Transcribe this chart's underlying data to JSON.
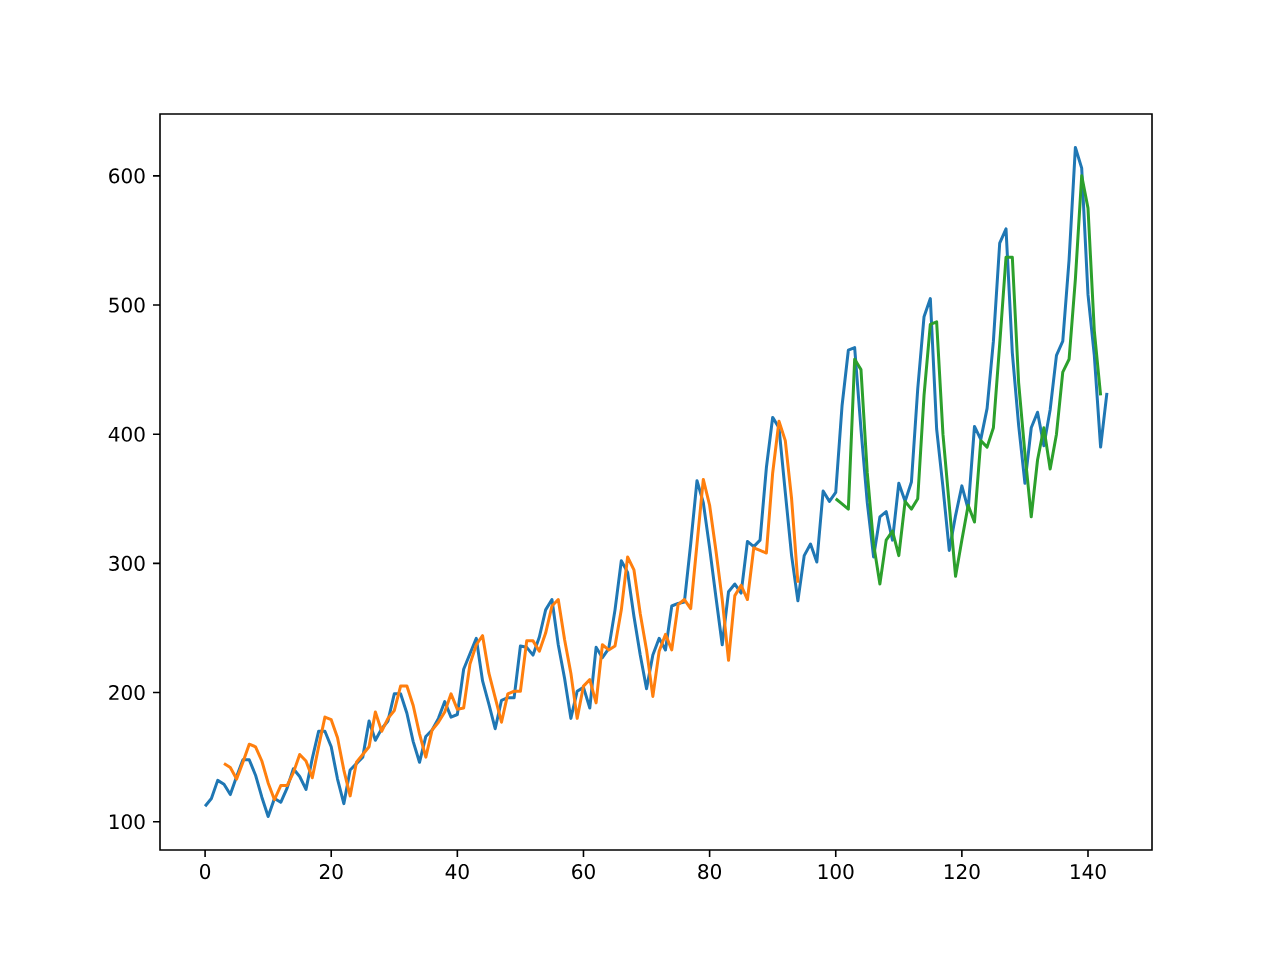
{
  "chart_data": {
    "type": "line",
    "xlim": [
      -7.15,
      150.15
    ],
    "ylim": [
      78.1,
      647.9
    ],
    "xticks": [
      0,
      20,
      40,
      60,
      80,
      100,
      120,
      140
    ],
    "yticks": [
      100,
      200,
      300,
      400,
      500,
      600
    ],
    "grid": false,
    "marker": "none",
    "line_style": "solid",
    "series": [
      {
        "color": "#1f77b4",
        "x": [
          0,
          1,
          2,
          3,
          4,
          5,
          6,
          7,
          8,
          9,
          10,
          11,
          12,
          13,
          14,
          15,
          16,
          17,
          18,
          19,
          20,
          21,
          22,
          23,
          24,
          25,
          26,
          27,
          28,
          29,
          30,
          31,
          32,
          33,
          34,
          35,
          36,
          37,
          38,
          39,
          40,
          41,
          42,
          43,
          44,
          45,
          46,
          47,
          48,
          49,
          50,
          51,
          52,
          53,
          54,
          55,
          56,
          57,
          58,
          59,
          60,
          61,
          62,
          63,
          64,
          65,
          66,
          67,
          68,
          69,
          70,
          71,
          72,
          73,
          74,
          75,
          76,
          77,
          78,
          79,
          80,
          81,
          82,
          83,
          84,
          85,
          86,
          87,
          88,
          89,
          90,
          91,
          92,
          93,
          94,
          95,
          96,
          97,
          98,
          99,
          100,
          101,
          102,
          103,
          104,
          105,
          106,
          107,
          108,
          109,
          110,
          111,
          112,
          113,
          114,
          115,
          116,
          117,
          118,
          119,
          120,
          121,
          122,
          123,
          124,
          125,
          126,
          127,
          128,
          129,
          130,
          131,
          132,
          133,
          134,
          135,
          136,
          137,
          138,
          139,
          140,
          141,
          142,
          143
        ],
        "values": [
          112,
          118,
          132,
          129,
          121,
          135,
          148,
          148,
          136,
          119,
          104,
          118,
          115,
          126,
          141,
          135,
          125,
          149,
          170,
          170,
          158,
          133,
          114,
          140,
          145,
          150,
          178,
          163,
          172,
          178,
          199,
          199,
          184,
          162,
          146,
          166,
          171,
          180,
          193,
          181,
          183,
          218,
          230,
          242,
          209,
          191,
          172,
          194,
          196,
          196,
          236,
          235,
          229,
          243,
          264,
          272,
          237,
          211,
          180,
          201,
          204,
          188,
          235,
          227,
          234,
          264,
          302,
          293,
          259,
          229,
          203,
          229,
          242,
          233,
          267,
          269,
          270,
          315,
          364,
          347,
          312,
          274,
          237,
          278,
          284,
          277,
          317,
          313,
          318,
          374,
          413,
          405,
          355,
          306,
          271,
          306,
          315,
          301,
          356,
          348,
          355,
          422,
          465,
          467,
          404,
          347,
          305,
          336,
          340,
          318,
          362,
          348,
          363,
          435,
          491,
          505,
          404,
          359,
          310,
          337,
          360,
          342,
          406,
          396,
          420,
          472,
          548,
          559,
          463,
          407,
          362,
          405,
          417,
          391,
          419,
          461,
          472,
          535,
          622,
          606,
          508,
          461,
          390,
          432
        ]
      },
      {
        "color": "#ff7f0e",
        "x": [
          3,
          4,
          5,
          6,
          7,
          8,
          9,
          10,
          11,
          12,
          13,
          14,
          15,
          16,
          17,
          18,
          19,
          20,
          21,
          22,
          23,
          24,
          25,
          26,
          27,
          28,
          29,
          30,
          31,
          32,
          33,
          34,
          35,
          36,
          37,
          38,
          39,
          40,
          41,
          42,
          43,
          44,
          45,
          46,
          47,
          48,
          49,
          50,
          51,
          52,
          53,
          54,
          55,
          56,
          57,
          58,
          59,
          60,
          61,
          62,
          63,
          64,
          65,
          66,
          67,
          68,
          69,
          70,
          71,
          72,
          73,
          74,
          75,
          76,
          77,
          78,
          79,
          80,
          81,
          82,
          83,
          84,
          85,
          86,
          87,
          88,
          89,
          90,
          91,
          92,
          93,
          94
        ],
        "values": [
          145,
          142,
          133,
          146,
          160,
          158,
          147,
          130,
          117,
          128,
          128,
          138,
          152,
          147,
          134,
          158,
          181,
          179,
          165,
          140,
          120,
          146,
          152,
          158,
          185,
          170,
          180,
          186,
          205,
          205,
          190,
          168,
          150,
          171,
          177,
          185,
          199,
          187,
          188,
          222,
          237,
          244,
          215,
          196,
          177,
          199,
          201,
          201,
          240,
          240,
          232,
          246,
          267,
          272,
          241,
          215,
          180,
          205,
          210,
          192,
          237,
          233,
          236,
          264,
          305,
          295,
          261,
          233,
          197,
          232,
          245,
          233,
          268,
          272,
          265,
          315,
          365,
          345,
          310,
          272,
          225,
          275,
          283,
          272,
          312,
          310,
          308,
          370,
          410,
          395,
          350,
          285
        ]
      },
      {
        "color": "#2ca02c",
        "x": [
          100,
          101,
          102,
          103,
          104,
          105,
          106,
          107,
          108,
          109,
          110,
          111,
          112,
          113,
          114,
          115,
          116,
          117,
          118,
          119,
          120,
          121,
          122,
          123,
          124,
          125,
          126,
          127,
          128,
          129,
          130,
          131,
          132,
          133,
          134,
          135,
          136,
          137,
          138,
          139,
          140,
          141,
          142
        ],
        "values": [
          350,
          346,
          342,
          458,
          450,
          370,
          315,
          284,
          318,
          325,
          306,
          348,
          342,
          350,
          430,
          485,
          487,
          400,
          345,
          290,
          318,
          345,
          332,
          395,
          390,
          405,
          470,
          537,
          537,
          440,
          385,
          336,
          380,
          405,
          373,
          400,
          448,
          458,
          520,
          600,
          575,
          480,
          430
        ]
      }
    ]
  }
}
